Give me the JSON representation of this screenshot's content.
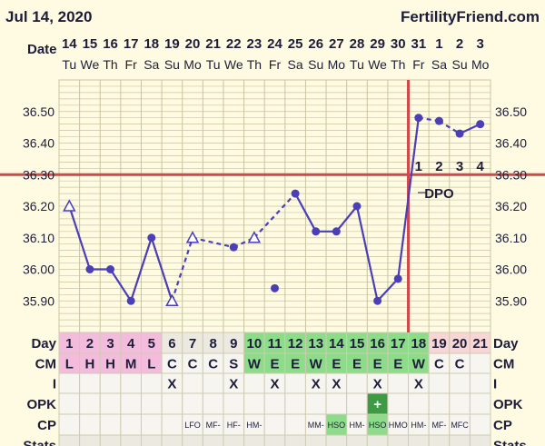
{
  "header": {
    "chart_start": "Jul 14, 2020",
    "brand": "FertilityFriend.com"
  },
  "colors": {
    "background": "#fffbe2",
    "line": "#4b3fb8",
    "coverline": "#d24848",
    "ovulation_line": "#d24848",
    "grid": "#c8c4a0",
    "menstruation_pink": "#f4bcdc",
    "fertile_green": "#8ddc8a",
    "postovulation_pink": "#f8d6d6",
    "stats_bg": "#eceae0"
  },
  "row_labels": [
    "Day",
    "CM",
    "I",
    "OPK",
    "CP",
    "Stats"
  ],
  "date_label": "Date",
  "chart_data": {
    "type": "line",
    "dates": [
      "14",
      "15",
      "16",
      "17",
      "18",
      "19",
      "20",
      "21",
      "22",
      "23",
      "24",
      "25",
      "26",
      "27",
      "28",
      "29",
      "30",
      "31",
      "1",
      "2",
      "3"
    ],
    "weekdays": [
      "Tu",
      "We",
      "Th",
      "Fr",
      "Sa",
      "Su",
      "Mo",
      "Tu",
      "We",
      "Th",
      "Fr",
      "Sa",
      "Su",
      "Mo",
      "Tu",
      "We",
      "Th",
      "Fr",
      "Sa",
      "Su",
      "Mo"
    ],
    "days": [
      "1",
      "2",
      "3",
      "4",
      "5",
      "6",
      "7",
      "8",
      "9",
      "10",
      "11",
      "12",
      "13",
      "14",
      "15",
      "16",
      "17",
      "18",
      "19",
      "20",
      "21"
    ],
    "temps": [
      36.2,
      36.0,
      36.0,
      35.9,
      36.1,
      35.9,
      36.1,
      null,
      36.07,
      36.1,
      35.94,
      36.24,
      36.12,
      36.12,
      36.2,
      35.9,
      35.97,
      36.48,
      36.47,
      36.43,
      36.46
    ],
    "discarded": [
      false,
      false,
      false,
      false,
      false,
      false,
      false,
      false,
      false,
      false,
      true,
      false,
      false,
      false,
      false,
      false,
      false,
      false,
      false,
      false,
      false
    ],
    "open_markers": [
      true,
      false,
      false,
      false,
      false,
      true,
      true,
      false,
      false,
      true,
      false,
      false,
      false,
      false,
      false,
      false,
      false,
      false,
      false,
      false,
      false
    ],
    "dashed_into": [
      false,
      false,
      false,
      false,
      false,
      false,
      true,
      false,
      true,
      true,
      false,
      true,
      false,
      false,
      false,
      false,
      false,
      false,
      true,
      true,
      false
    ],
    "yticks": [
      "36.50",
      "36.40",
      "36.30",
      "36.20",
      "36.10",
      "36.00",
      "35.90"
    ],
    "ylim": [
      35.8,
      36.6
    ],
    "coverline": 36.3,
    "ovulation_after_day": 17,
    "dpo_numbers": [
      "1",
      "2",
      "3",
      "4"
    ],
    "dpo_label": "DPO",
    "cm": [
      "L",
      "H",
      "H",
      "M",
      "L",
      "C",
      "C",
      "C",
      "S",
      "W",
      "E",
      "E",
      "W",
      "E",
      "E",
      "E",
      "E",
      "W",
      "C",
      "C",
      ""
    ],
    "cm_highlight": [
      "pink",
      "pink",
      "pink",
      "pink",
      "pink",
      "",
      "",
      "",
      "",
      "green",
      "green",
      "green",
      "green",
      "green",
      "green",
      "green",
      "green",
      "green",
      "",
      "",
      ""
    ],
    "intercourse": [
      "",
      "",
      "",
      "",
      "",
      "X",
      "",
      "",
      "X",
      "",
      "X",
      "",
      "X",
      "X",
      "",
      "X",
      "",
      "X",
      "",
      "",
      ""
    ],
    "opk": [
      "",
      "",
      "",
      "",
      "",
      "",
      "",
      "",
      "",
      "",
      "",
      "",
      "",
      "",
      "",
      "+",
      "",
      "",
      "",
      "",
      ""
    ],
    "cp": [
      "",
      "",
      "",
      "",
      "",
      "",
      "LFO",
      "MF-",
      "HF-",
      "HM-",
      "",
      "",
      "MM-",
      "HSO",
      "HM-",
      "HSO",
      "HMO",
      "HM-",
      "MF-",
      "MFC",
      ""
    ],
    "cp_highlight": [
      "",
      "",
      "",
      "",
      "",
      "",
      "",
      "",
      "",
      "",
      "",
      "",
      "",
      "green",
      "",
      "green",
      "",
      "",
      "",
      "",
      ""
    ]
  }
}
